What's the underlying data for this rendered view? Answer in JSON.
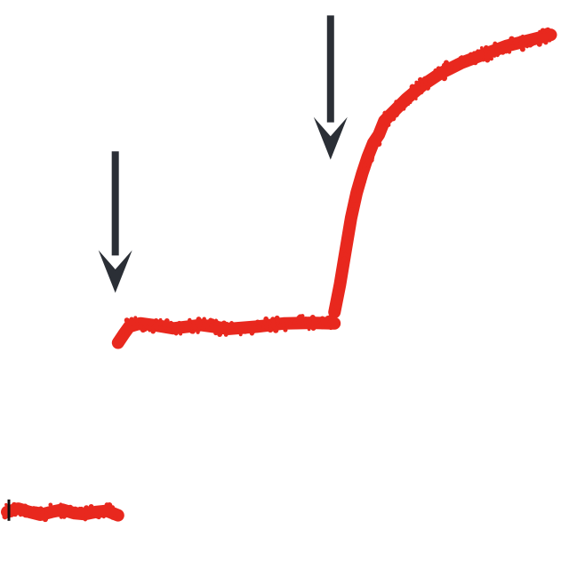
{
  "chart_data": {
    "type": "line",
    "title": "",
    "xlabel": "",
    "ylabel": "",
    "xlim": [
      0,
      100
    ],
    "ylim": [
      0,
      100
    ],
    "grid": false,
    "legend": "none",
    "trace_color": "#e8281e",
    "arrow_color": "#2b2f36",
    "segments": [
      {
        "x": [
          0,
          2,
          4,
          6,
          8,
          10,
          12,
          14,
          16,
          18,
          20
        ],
        "y": [
          9.0,
          9.6,
          9.0,
          8.5,
          9.0,
          9.4,
          8.8,
          8.6,
          9.0,
          9.2,
          8.4
        ]
      },
      {
        "x": [
          20,
          21,
          22,
          24,
          27,
          30,
          35,
          40,
          45,
          50,
          55,
          59
        ],
        "y": [
          39.5,
          41.0,
          42.4,
          43.0,
          42.6,
          42.1,
          42.7,
          42.0,
          42.4,
          43.0,
          43.1,
          43.0
        ]
      },
      {
        "x": [
          59,
          60,
          61,
          62,
          63,
          64,
          65,
          66,
          67,
          68,
          70,
          72,
          75,
          78,
          82,
          86,
          90,
          94,
          98
        ],
        "y": [
          45,
          50,
          56,
          62,
          66.5,
          70,
          73,
          75.5,
          77,
          79.5,
          81.5,
          83.5,
          86,
          88,
          90,
          91.5,
          93,
          94,
          95
        ]
      }
    ],
    "arrows": [
      {
        "x": 19.5,
        "y_top": 74,
        "y_tip": 48.5
      },
      {
        "x": 58.3,
        "y_top": 98.5,
        "y_tip": 72.5
      }
    ]
  }
}
